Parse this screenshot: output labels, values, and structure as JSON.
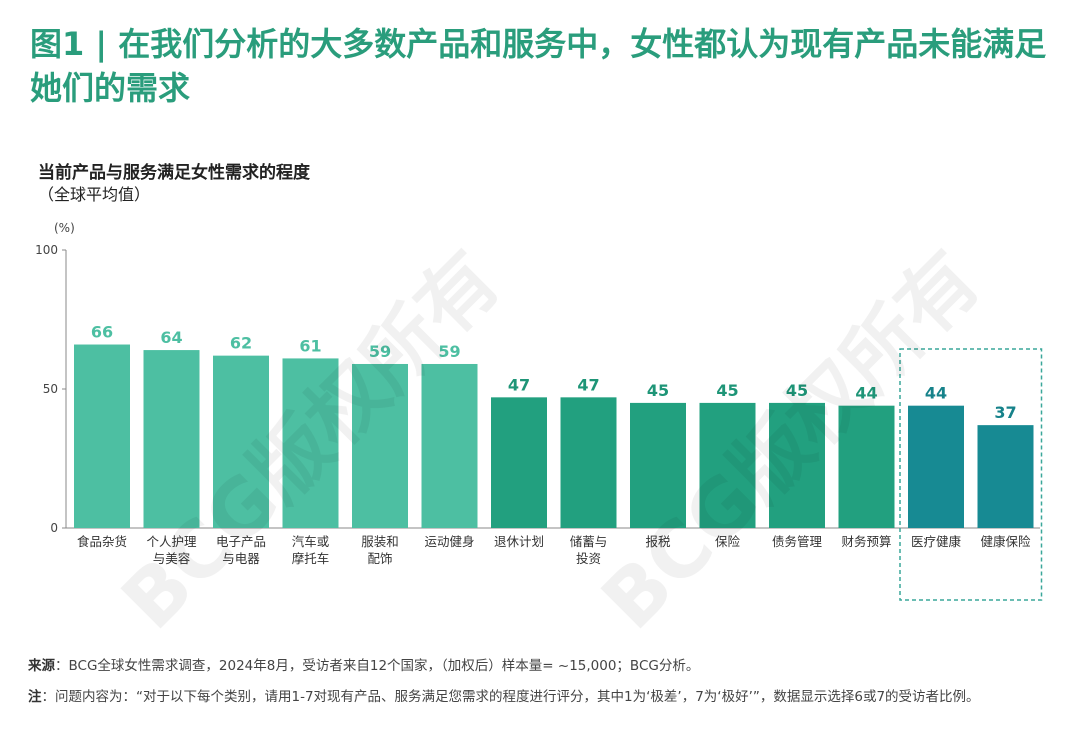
{
  "header": {
    "title": "图1 | 在我们分析的大多数产品和服务中，女性都认为现有产品未能满足她们的需求"
  },
  "chart_data": {
    "type": "bar",
    "title": "当前产品与服务满足女性需求的程度",
    "subtitle": "（全球平均值）",
    "ylabel": "(%)",
    "ylim": [
      0,
      100
    ],
    "yticks": [
      0,
      50,
      100
    ],
    "categories": [
      [
        "食品杂货"
      ],
      [
        "个人护理",
        "与美容"
      ],
      [
        "电子产品",
        "与电器"
      ],
      [
        "汽车或",
        "摩托车"
      ],
      [
        "服装和",
        "配饰"
      ],
      [
        "运动健身"
      ],
      [
        "退休计划"
      ],
      [
        "储蓄与",
        "投资"
      ],
      [
        "报税"
      ],
      [
        "保险"
      ],
      [
        "债务管理"
      ],
      [
        "财务预算"
      ],
      [
        "医疗健康"
      ],
      [
        "健康保险"
      ]
    ],
    "values": [
      66,
      64,
      62,
      61,
      59,
      59,
      47,
      47,
      45,
      45,
      45,
      44,
      44,
      37
    ],
    "group": [
      "light",
      "light",
      "light",
      "light",
      "light",
      "light",
      "mid",
      "mid",
      "mid",
      "mid",
      "mid",
      "mid",
      "dark",
      "dark"
    ],
    "highlight_group": "dark",
    "grid": false,
    "colors": {
      "light": "#4dbfa2",
      "mid": "#22a07f",
      "dark": "#178a93",
      "light_label": "#4dbfa2",
      "mid_label": "#1e9577",
      "dark_label": "#16828a",
      "highlight_border": "#3aa79a",
      "axis": "#888888"
    }
  },
  "footer": {
    "source_label": "来源",
    "source_text": "：BCG全球女性需求调查，2024年8月，受访者来自12个国家，（加权后）样本量= ~15,000；BCG分析。",
    "note_label": "注",
    "note_text": "：问题内容为：“对于以下每个类别，请用1-7对现有产品、服务满足您需求的程度进行评分，其中1为‘极差’，7为‘极好’”，数据显示选择6或7的受访者比例。"
  },
  "watermark": {
    "text": "BCG版权所有"
  }
}
